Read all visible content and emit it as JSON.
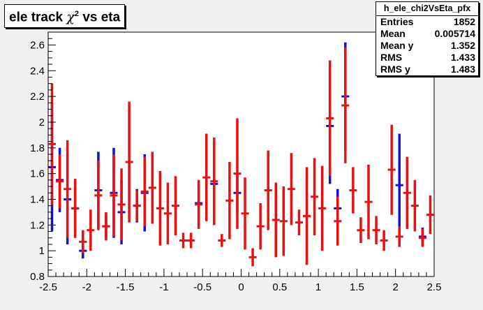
{
  "title": {
    "main": "ele track ",
    "symbol": "χ",
    "sup": "2",
    "rest": " vs eta"
  },
  "stats": {
    "name": "h_ele_chi2VsEta_pfx",
    "entries_label": "Entries",
    "entries": "1852",
    "mean_label": "Mean",
    "mean": "0.005714",
    "meany_label": "Mean y",
    "meany": "1.352",
    "rms_label": "RMS",
    "rms": "1.433",
    "rmsy_label": "RMS y",
    "rmsy": "1.483"
  },
  "colors": {
    "frame_bg": "#f0f0f0",
    "plot_bg": "#ffffff",
    "series_red": "#e81010",
    "series_blue": "#1010e0"
  },
  "chart_data": {
    "type": "scatter",
    "title": "ele track χ2 vs eta",
    "xlabel": "",
    "ylabel": "",
    "xlim": [
      -2.5,
      2.5
    ],
    "ylim": [
      0.8,
      2.7
    ],
    "xticks": [
      -2.5,
      -2,
      -1.5,
      -1,
      -0.5,
      0,
      0.5,
      1,
      1.5,
      2,
      2.5
    ],
    "xtick_labels": [
      "-2.5",
      "-2",
      "-1.5",
      "-1",
      "-0.5",
      "0",
      "0.5",
      "1",
      "1.5",
      "2",
      "2.5"
    ],
    "yticks": [
      0.8,
      1,
      1.2,
      1.4,
      1.6,
      1.8,
      2,
      2.2,
      2.4,
      2.6
    ],
    "ytick_labels": [
      "0.8",
      "1",
      "1.2",
      "1.4",
      "1.6",
      "1.8",
      "2",
      "2.2",
      "2.4",
      "2.6"
    ],
    "bin_width": 0.1,
    "series": [
      {
        "color": "blue",
        "points": [
          [
            -2.45,
            1.65,
            0.5
          ],
          [
            -2.35,
            1.55,
            0.25
          ],
          [
            -2.25,
            1.4,
            0.35
          ],
          [
            -2.15,
            1.33,
            0.18
          ],
          [
            -2.05,
            1.0,
            0.06
          ],
          [
            -1.85,
            1.47,
            0.3
          ],
          [
            -1.75,
            1.19,
            0.1
          ],
          [
            -1.65,
            1.45,
            0.35
          ],
          [
            -1.55,
            1.3,
            0.25
          ],
          [
            -1.35,
            1.35,
            0.13
          ],
          [
            -1.25,
            1.45,
            0.3
          ],
          [
            -0.55,
            1.37,
            0.17
          ],
          [
            -0.35,
            1.52,
            0.3
          ],
          [
            -0.05,
            1.45,
            0.15
          ],
          [
            1.15,
            1.97,
            0.45
          ],
          [
            1.25,
            1.33,
            0.15
          ],
          [
            1.35,
            2.2,
            0.42
          ],
          [
            2.05,
            1.51,
            0.4
          ],
          [
            2.35,
            1.11,
            0.07
          ]
        ]
      },
      {
        "color": "red",
        "points": [
          [
            -2.45,
            1.83,
            0.47
          ],
          [
            -2.35,
            1.54,
            0.21
          ],
          [
            -2.25,
            1.48,
            0.38
          ],
          [
            -2.15,
            1.33,
            0.23
          ],
          [
            -2.05,
            1.07,
            0.09
          ],
          [
            -1.95,
            1.16,
            0.16
          ],
          [
            -1.85,
            1.43,
            0.27
          ],
          [
            -1.75,
            1.19,
            0.11
          ],
          [
            -1.65,
            1.43,
            0.32
          ],
          [
            -1.55,
            1.36,
            0.28
          ],
          [
            -1.45,
            1.69,
            0.47
          ],
          [
            -1.35,
            1.35,
            0.12
          ],
          [
            -1.25,
            1.46,
            0.27
          ],
          [
            -1.15,
            1.49,
            0.28
          ],
          [
            -1.05,
            1.33,
            0.29
          ],
          [
            -0.95,
            1.29,
            0.24
          ],
          [
            -0.85,
            1.35,
            0.23
          ],
          [
            -0.75,
            1.08,
            0.06
          ],
          [
            -0.65,
            1.08,
            0.06
          ],
          [
            -0.55,
            1.36,
            0.19
          ],
          [
            -0.45,
            1.57,
            0.34
          ],
          [
            -0.35,
            1.54,
            0.34
          ],
          [
            -0.25,
            1.08,
            0.05
          ],
          [
            -0.15,
            1.39,
            0.3
          ],
          [
            -0.05,
            1.6,
            0.43
          ],
          [
            0.05,
            1.29,
            0.28
          ],
          [
            0.15,
            0.95,
            0.07
          ],
          [
            0.25,
            1.19,
            0.18
          ],
          [
            0.35,
            1.47,
            0.31
          ],
          [
            0.45,
            1.24,
            0.29
          ],
          [
            0.55,
            1.23,
            0.27
          ],
          [
            0.65,
            1.48,
            0.28
          ],
          [
            0.75,
            1.22,
            0.1
          ],
          [
            0.85,
            1.27,
            0.38
          ],
          [
            0.95,
            1.42,
            0.3
          ],
          [
            1.05,
            1.33,
            0.33
          ],
          [
            1.15,
            2.03,
            0.45
          ],
          [
            1.25,
            1.23,
            0.19
          ],
          [
            1.35,
            2.13,
            0.45
          ],
          [
            1.45,
            1.47,
            0.18
          ],
          [
            1.55,
            1.16,
            0.1
          ],
          [
            1.65,
            1.38,
            0.29
          ],
          [
            1.75,
            1.16,
            0.11
          ],
          [
            1.85,
            1.08,
            0.08
          ],
          [
            1.95,
            1.63,
            0.35
          ],
          [
            2.05,
            1.11,
            0.08
          ],
          [
            2.15,
            1.45,
            0.28
          ],
          [
            2.25,
            1.35,
            0.2
          ],
          [
            2.35,
            1.1,
            0.07
          ],
          [
            2.45,
            1.28,
            0.15
          ]
        ]
      }
    ]
  }
}
